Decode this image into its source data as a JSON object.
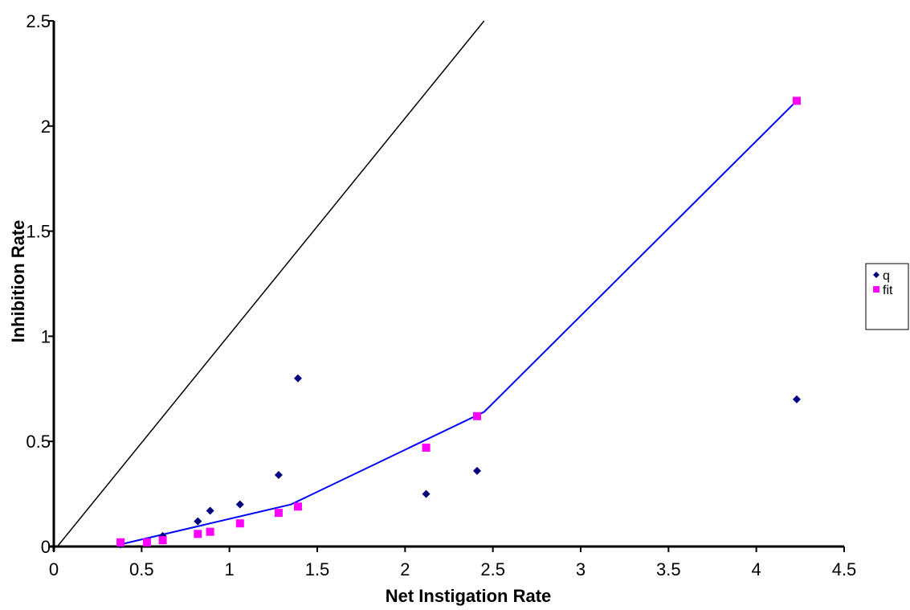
{
  "chart_data": {
    "type": "scatter",
    "xlabel": "Net Instigation Rate",
    "ylabel": "Inhibition Rate",
    "xlim": [
      0,
      4.5
    ],
    "ylim": [
      0,
      2.5
    ],
    "x_ticks": [
      "0",
      "0.5",
      "1",
      "1.5",
      "2",
      "2.5",
      "3",
      "3.5",
      "4",
      "4.5"
    ],
    "y_ticks": [
      "0",
      "0.5",
      "1",
      "1.5",
      "2",
      "2.5"
    ],
    "grid": false,
    "legend_position": "right",
    "series": [
      {
        "name": "q",
        "marker": "diamond",
        "color": "#000080",
        "x": [
          0.38,
          0.62,
          0.82,
          0.89,
          1.06,
          1.28,
          1.39,
          2.12,
          2.41,
          4.23
        ],
        "y": [
          0.01,
          0.05,
          0.12,
          0.17,
          0.2,
          0.34,
          0.8,
          0.25,
          0.36,
          0.7
        ]
      },
      {
        "name": "fit",
        "marker": "square",
        "color": "#ff00ff",
        "x": [
          0.38,
          0.53,
          0.62,
          0.82,
          0.89,
          1.06,
          1.28,
          1.39,
          2.12,
          2.41,
          4.23
        ],
        "y": [
          0.02,
          0.02,
          0.03,
          0.06,
          0.07,
          0.11,
          0.16,
          0.19,
          0.47,
          0.62,
          2.12
        ]
      }
    ],
    "lines": [
      {
        "color": "#0000ff",
        "x": [
          0.38,
          1.35,
          2.45,
          4.23
        ],
        "y": [
          0.01,
          0.2,
          0.64,
          2.12
        ]
      },
      {
        "color": "#000000",
        "x": [
          0.02,
          2.45
        ],
        "y": [
          0.0,
          2.5
        ]
      }
    ]
  }
}
